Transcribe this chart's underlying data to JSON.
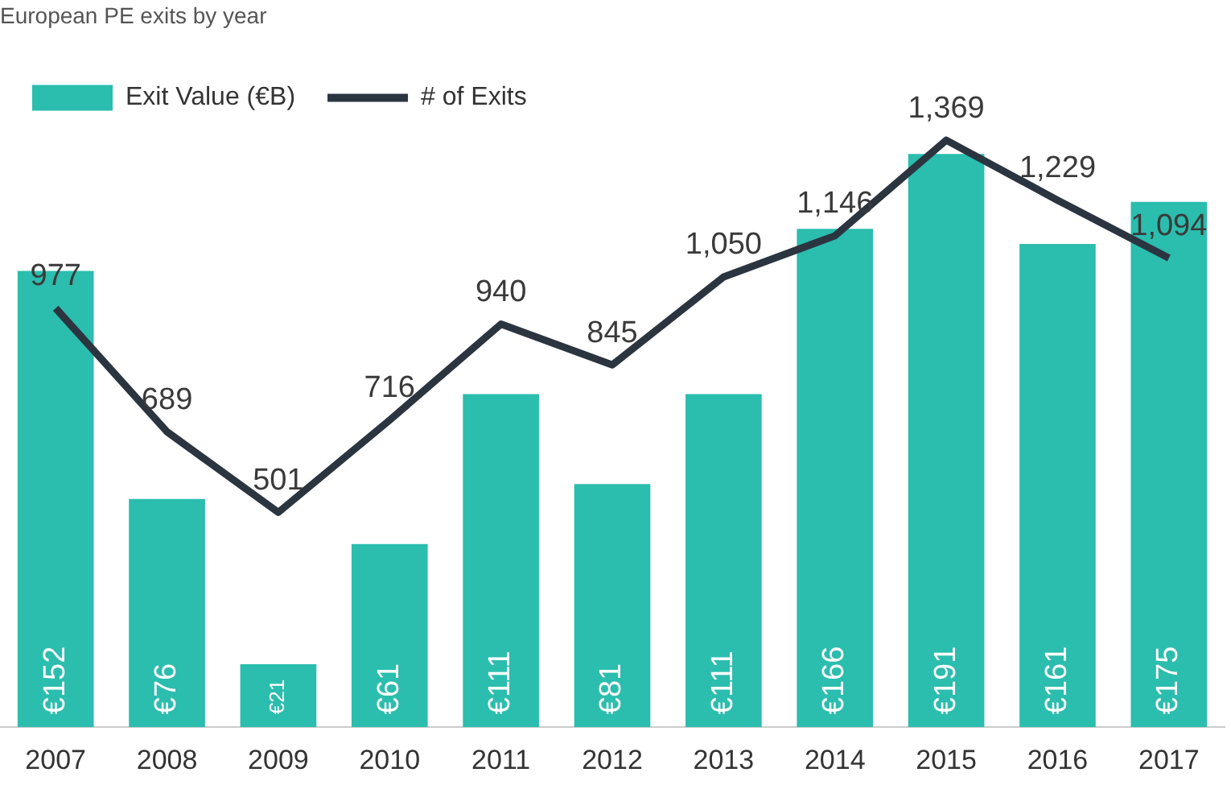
{
  "chart_data": {
    "type": "bar",
    "title": "European PE exits by year",
    "categories": [
      "2007",
      "2008",
      "2009",
      "2010",
      "2011",
      "2012",
      "2013",
      "2014",
      "2015",
      "2016",
      "2017"
    ],
    "series": [
      {
        "name": "Exit Value (€B)",
        "color": "#2bbdae",
        "values": [
          152,
          76,
          21,
          61,
          111,
          81,
          111,
          166,
          191,
          161,
          175
        ],
        "value_labels": [
          "€152",
          "€76",
          "€21",
          "€61",
          "€111",
          "€81",
          "€111",
          "€166",
          "€191",
          "€161",
          "€175"
        ]
      },
      {
        "name": "# of Exits",
        "type": "line",
        "axis": "y2",
        "color": "#2b3540",
        "values": [
          977,
          689,
          501,
          716,
          940,
          845,
          1050,
          1146,
          1369,
          1229,
          1094
        ],
        "value_labels": [
          "977",
          "689",
          "501",
          "716",
          "940",
          "845",
          "1,050",
          "1,146",
          "1,369",
          "1,229",
          "1,094"
        ]
      }
    ],
    "tick_labels": "x",
    "legend": "top left",
    "marker": "none",
    "line_style": "solid",
    "grid": false
  }
}
